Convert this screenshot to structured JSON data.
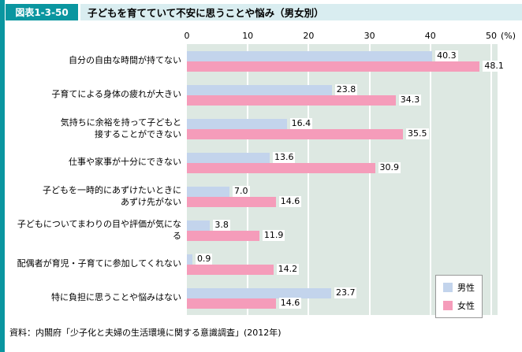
{
  "figure": {
    "tag": "図表1-3-50",
    "title": "子どもを育てていて不安に思うことや悩み（男女別）",
    "source": "資料：内閣府「少子化と夫婦の生活環境に関する意識調査」(2012年)"
  },
  "colors": {
    "accent_teal": "#0a96a0",
    "title_strip_bg": "#d9edf0",
    "plot_bg": "#dde8e2",
    "gridline": "#ffffff",
    "male_bar": "#c3d4ec",
    "female_bar": "#f59cba"
  },
  "chart_data": {
    "type": "bar",
    "orientation": "horizontal",
    "title": "子どもを育てていて不安に思うことや悩み（男女別）",
    "x_axis": {
      "min": 0,
      "max": 50,
      "ticks": [
        0,
        10,
        20,
        30,
        40,
        50
      ],
      "unit": "(%)"
    },
    "grid": true,
    "plot_background": "#dde8e2",
    "categories": [
      "自分の自由な時間が持てない",
      "子育てによる身体の疲れが大きい",
      "気持ちに余裕を持って子どもと\n接することができない",
      "仕事や家事が十分にできない",
      "子どもを一時的にあずけたいときに\nあずけ先がない",
      "子どもについてまわりの目や評価が気になる",
      "配偶者が育児・子育てに参加してくれない",
      "特に負担に思うことや悩みはない"
    ],
    "series": [
      {
        "name": "男性",
        "color": "#c3d4ec",
        "values": [
          40.3,
          23.8,
          16.4,
          13.6,
          7.0,
          3.8,
          0.9,
          23.7
        ]
      },
      {
        "name": "女性",
        "color": "#f59cba",
        "values": [
          48.1,
          34.3,
          35.5,
          30.9,
          14.6,
          11.9,
          14.2,
          14.6
        ]
      }
    ],
    "legend": {
      "position": "bottom-right",
      "labels": [
        "男性",
        "女性"
      ]
    }
  }
}
